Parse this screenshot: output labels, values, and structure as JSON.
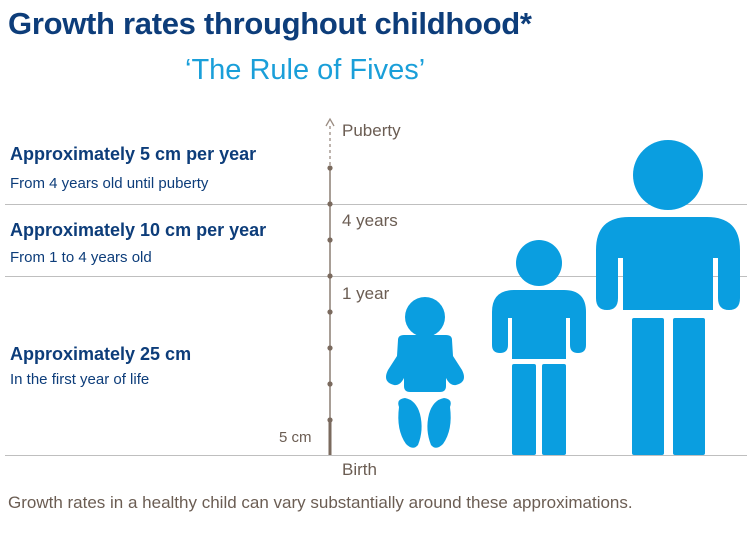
{
  "title": "Growth rates throughout childhood*",
  "subtitle": "‘The Rule of Fives’",
  "bands": [
    {
      "heading": "Approximately 5 cm per year",
      "subtext": "From 4 years old until puberty"
    },
    {
      "heading": "Approximately 10 cm per year",
      "subtext": "From 1 to 4 years old"
    },
    {
      "heading": "Approximately 25 cm",
      "subtext": "In the first year of life"
    }
  ],
  "axis": {
    "labels": [
      "Puberty",
      "4 years",
      "1 year",
      "Birth"
    ],
    "scale_label": "5 cm"
  },
  "footer": "Growth rates in a healthy child can vary substantially around these approximations.",
  "colors": {
    "title": "#0d3d7a",
    "accent": "#1a9fd9",
    "figure": "#0a9ee0",
    "axis": "#7a6a5e"
  },
  "icons": [
    "baby-icon",
    "toddler-icon",
    "child-icon"
  ]
}
